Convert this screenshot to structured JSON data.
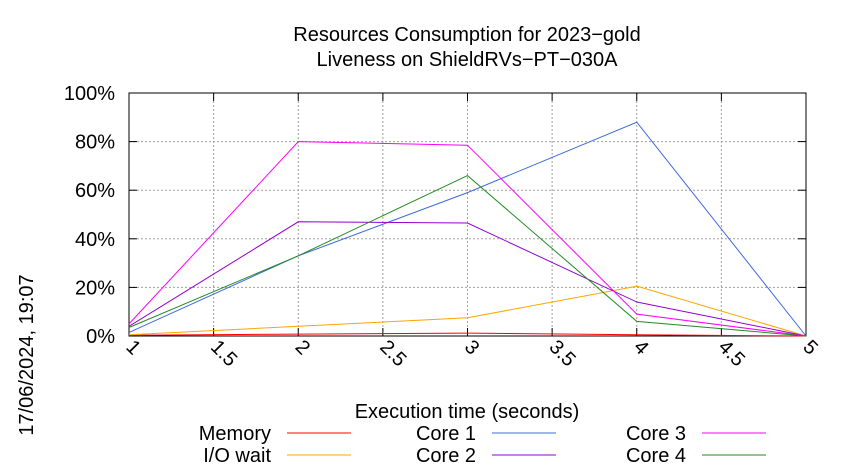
{
  "side_label": "17/06/2024, 19:07",
  "chart_data": {
    "type": "line",
    "title_lines": [
      "Resources Consumption for 2023−gold",
      "Liveness on ShieldRVs−PT−030A"
    ],
    "xlabel": "Execution time (seconds)",
    "ylabel": "",
    "xlim": [
      1,
      5
    ],
    "ylim": [
      0,
      100
    ],
    "x_ticks": [
      1,
      1.5,
      2,
      2.5,
      3,
      3.5,
      4,
      4.5,
      5
    ],
    "x_tick_labels": [
      "1",
      "1.5",
      "2",
      "2.5",
      "3",
      "3.5",
      "4",
      "4.5",
      "5"
    ],
    "y_ticks": [
      0,
      20,
      40,
      60,
      80,
      100
    ],
    "y_tick_labels": [
      "0%",
      "20%",
      "40%",
      "60%",
      "80%",
      "100%"
    ],
    "grid": true,
    "legend_position": "bottom",
    "x": [
      1,
      2,
      3,
      4,
      5
    ],
    "series": [
      {
        "name": "Memory",
        "color": "#ff0000",
        "values": [
          0.3,
          0.8,
          1.2,
          0.5,
          0
        ]
      },
      {
        "name": "I/O wait",
        "color": "#ffa500",
        "values": [
          0.5,
          4,
          7.5,
          20.5,
          0
        ]
      },
      {
        "name": "Core 1",
        "color": "#4169e1",
        "values": [
          1.5,
          33,
          59,
          88,
          0
        ]
      },
      {
        "name": "Core 2",
        "color": "#9400d3",
        "values": [
          4,
          47,
          46.5,
          14,
          0
        ]
      },
      {
        "name": "Core 3",
        "color": "#ff00ff",
        "values": [
          5,
          80,
          78.5,
          9,
          0
        ]
      },
      {
        "name": "Core 4",
        "color": "#228b22",
        "values": [
          3.5,
          33,
          66,
          6,
          0
        ]
      }
    ]
  }
}
